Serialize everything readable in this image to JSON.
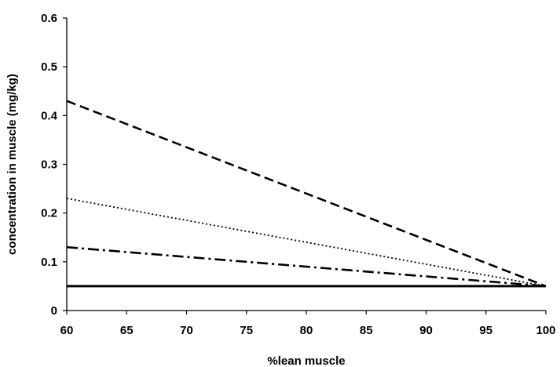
{
  "chart_data": {
    "type": "line",
    "title": "",
    "xlabel": "%lean muscle",
    "ylabel": "concentration in muscle (mg/kg)",
    "xlim": [
      60,
      100
    ],
    "ylim": [
      0,
      0.6
    ],
    "x_ticks": [
      "60",
      "65",
      "70",
      "75",
      "80",
      "85",
      "90",
      "95",
      "100"
    ],
    "y_ticks": [
      "0",
      "0.1",
      "0.2",
      "0.3",
      "0.4",
      "0.5",
      "0.6"
    ],
    "grid": false,
    "legend": "none",
    "series": [
      {
        "style": "dashed",
        "color": "#000000",
        "x": [
          60,
          100
        ],
        "y": [
          0.43,
          0.05
        ]
      },
      {
        "style": "dotted",
        "color": "#000000",
        "x": [
          60,
          100
        ],
        "y": [
          0.23,
          0.05
        ]
      },
      {
        "style": "dash-dot",
        "color": "#000000",
        "x": [
          60,
          100
        ],
        "y": [
          0.13,
          0.05
        ]
      },
      {
        "style": "solid",
        "color": "#000000",
        "x": [
          60,
          100
        ],
        "y": [
          0.05,
          0.05
        ]
      }
    ]
  }
}
